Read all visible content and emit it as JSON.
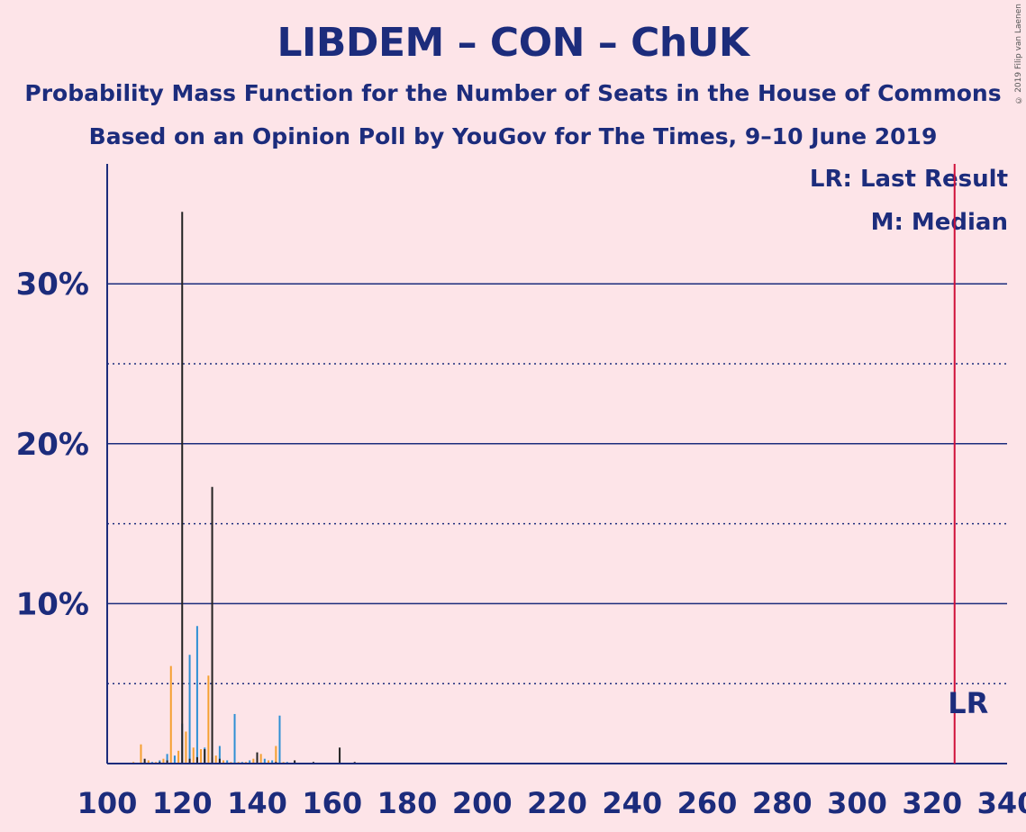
{
  "header": {
    "title": "LIBDEM – CON – ChUK",
    "subtitle1": "Probability Mass Function for the Number of Seats in the House of Commons",
    "subtitle2": "Based on an Opinion Poll by YouGov for The Times, 9–10 June 2019",
    "copyright": "© 2019 Filip van Laenen"
  },
  "legend": {
    "last_result": "LR: Last Result",
    "median": "M: Median"
  },
  "colors": {
    "background": "#fde4e8",
    "axis": "#1c2c7c",
    "series_orange": "#f5a030",
    "series_blue": "#2e8fd4",
    "series_black": "#222222",
    "last_result_line": "#d0103a"
  },
  "chart_data": {
    "type": "bar",
    "title": "LIBDEM – CON – ChUK",
    "xlabel": "",
    "ylabel": "",
    "xlim": [
      100,
      340
    ],
    "ylim": [
      0,
      37.5
    ],
    "x_ticks": [
      100,
      120,
      140,
      160,
      180,
      200,
      220,
      240,
      260,
      280,
      300,
      320,
      340
    ],
    "y_ticks_labeled": [
      {
        "value": 10,
        "label": "10%"
      },
      {
        "value": 20,
        "label": "20%"
      },
      {
        "value": 30,
        "label": "30%"
      }
    ],
    "y_gridlines_solid": [
      10,
      20,
      30
    ],
    "y_gridlines_dotted": [
      5,
      15,
      25
    ],
    "last_result": {
      "seats": 326,
      "label": "LR"
    },
    "median": {
      "seats": 120,
      "label": "M"
    },
    "series": [
      {
        "name": "orange",
        "x": [
          105,
          107,
          109,
          111,
          113,
          115,
          117,
          119,
          121,
          123,
          125,
          127,
          129,
          131,
          133,
          135,
          137,
          139,
          141,
          143,
          145,
          147,
          149
        ],
        "values": [
          0.05,
          0.1,
          1.2,
          0.2,
          0.1,
          0.3,
          6.1,
          0.8,
          2.0,
          1.0,
          0.9,
          5.5,
          0.5,
          0.2,
          0.1,
          0.1,
          0.1,
          0.3,
          0.6,
          0.2,
          1.1,
          0.1,
          0.05
        ]
      },
      {
        "name": "blue",
        "x": [
          106,
          108,
          110,
          112,
          114,
          116,
          118,
          120,
          122,
          124,
          126,
          128,
          130,
          132,
          134,
          136,
          138,
          140,
          142,
          144,
          146,
          148,
          150
        ],
        "values": [
          0.05,
          0.05,
          0.1,
          0.1,
          0.2,
          0.6,
          0.5,
          2.5,
          6.8,
          8.6,
          1.0,
          0.4,
          1.1,
          0.2,
          3.1,
          0.1,
          0.2,
          0.5,
          0.3,
          0.2,
          3.0,
          0.1,
          0.1
        ]
      },
      {
        "name": "black",
        "x": [
          110,
          114,
          116,
          120,
          122,
          124,
          126,
          128,
          130,
          140,
          145,
          150,
          155,
          162,
          166,
          170
        ],
        "values": [
          0.3,
          0.1,
          0.2,
          34.5,
          0.3,
          0.4,
          0.9,
          17.3,
          0.3,
          0.7,
          0.1,
          0.2,
          0.1,
          1.0,
          0.1,
          0.05
        ]
      }
    ]
  }
}
